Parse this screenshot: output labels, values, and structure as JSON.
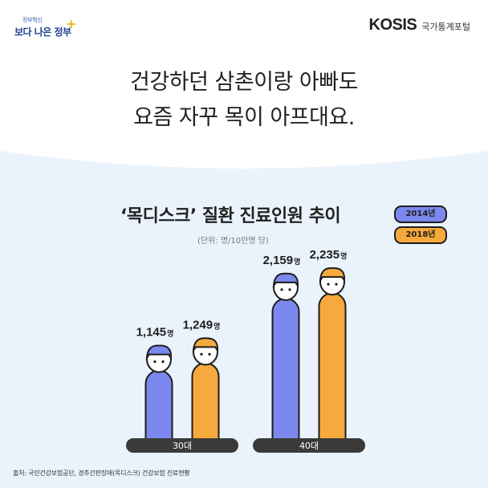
{
  "logo_gov": {
    "small_text": "정부혁신",
    "big_text": "보다 나은 정부"
  },
  "logo_kosis": {
    "brand": "KOSIS",
    "sub": "국가통계포털"
  },
  "headline": {
    "line1": "건강하던 삼촌이랑 아빠도",
    "line2": "요즘 자꾸 목이 아프대요."
  },
  "source": "출처: 국민건강보험공단, 경추간판장애(목디스크) 건강보험 진료현황",
  "colors": {
    "series_2014": "#7b88ee",
    "series_2018": "#f6a93c",
    "outline": "#1d1d1d",
    "background_curve": "#eaf3fc"
  },
  "chart_data": {
    "type": "bar",
    "title": "‘목디스크’ 질환 진료인원 추이",
    "unit_note": "(단위: 명/10만명 당)",
    "categories": [
      "30대",
      "40대"
    ],
    "series": [
      {
        "name": "2014년",
        "values": [
          1145,
          2159
        ],
        "labels": [
          "1,145",
          "2,159"
        ]
      },
      {
        "name": "2018년",
        "values": [
          1249,
          2235
        ],
        "labels": [
          "1,249",
          "2,235"
        ]
      }
    ],
    "value_suffix": "명",
    "legend_position": "top-right",
    "grid": false
  }
}
